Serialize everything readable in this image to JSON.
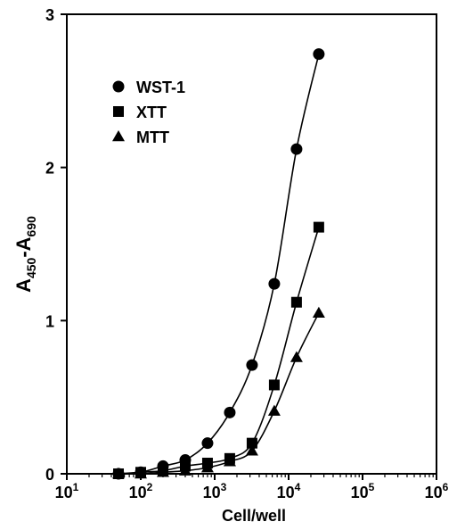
{
  "chart_data": {
    "type": "scatter",
    "xlabel": "Cell/well",
    "ylabel": {
      "prefix": "A",
      "sub1": "450",
      "dash": "-A",
      "sub2": "690"
    },
    "x_scale": "log",
    "xlim": [
      10,
      1000000
    ],
    "ylim": [
      0,
      3
    ],
    "x_ticks": [
      10,
      100,
      1000,
      10000,
      100000,
      1000000
    ],
    "x_tick_labels": [
      {
        "base": "10",
        "exp": "1"
      },
      {
        "base": "10",
        "exp": "2"
      },
      {
        "base": "10",
        "exp": "3"
      },
      {
        "base": "10",
        "exp": "4"
      },
      {
        "base": "10",
        "exp": "5"
      },
      {
        "base": "10",
        "exp": "6"
      }
    ],
    "y_ticks": [
      0,
      1,
      2,
      3
    ],
    "y_tick_labels": [
      "0",
      "1",
      "2",
      "3"
    ],
    "grid": false,
    "legend_position": "top-left",
    "series": [
      {
        "name": "WST-1",
        "marker": "circle",
        "x": [
          50,
          100,
          200,
          400,
          800,
          1600,
          3200,
          6400,
          12800,
          25600
        ],
        "y": [
          0.0,
          0.01,
          0.05,
          0.09,
          0.2,
          0.4,
          0.71,
          1.24,
          2.12,
          2.74
        ]
      },
      {
        "name": "XTT",
        "marker": "square",
        "x": [
          50,
          100,
          200,
          400,
          800,
          1600,
          3200,
          6400,
          12800,
          25600
        ],
        "y": [
          0.0,
          0.01,
          0.02,
          0.05,
          0.07,
          0.1,
          0.2,
          0.58,
          1.12,
          1.61
        ]
      },
      {
        "name": "MTT",
        "marker": "triangle",
        "x": [
          50,
          100,
          200,
          400,
          800,
          1600,
          3200,
          6400,
          12800,
          25600
        ],
        "y": [
          0.0,
          0.0,
          0.01,
          0.02,
          0.04,
          0.08,
          0.15,
          0.41,
          0.76,
          1.05
        ]
      }
    ]
  }
}
